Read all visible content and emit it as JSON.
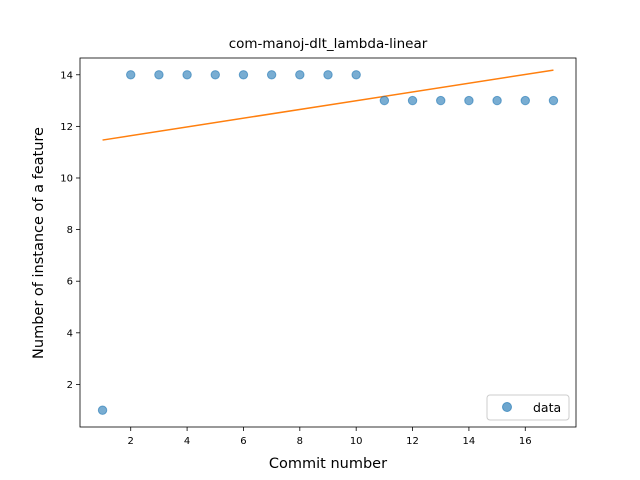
{
  "chart_data": {
    "type": "scatter",
    "title": "com-manoj-dlt_lambda-linear",
    "xlabel": "Commit number",
    "ylabel": "Number of instance of a feature",
    "xlim": [
      0.2,
      17.8
    ],
    "ylim": [
      0.35,
      14.65
    ],
    "xticks": [
      2,
      4,
      6,
      8,
      10,
      12,
      14,
      16
    ],
    "yticks": [
      2,
      4,
      6,
      8,
      10,
      12,
      14
    ],
    "legend_placement": "lower right",
    "grid": false,
    "series": [
      {
        "name": "data",
        "kind": "scatter",
        "color": "#1f77b4",
        "x": [
          1,
          2,
          3,
          4,
          5,
          6,
          7,
          8,
          9,
          10,
          11,
          12,
          13,
          14,
          15,
          16,
          17
        ],
        "y": [
          1,
          14,
          14,
          14,
          14,
          14,
          14,
          14,
          14,
          14,
          13,
          13,
          13,
          13,
          13,
          13,
          13
        ]
      },
      {
        "kind": "line",
        "color": "#ff7f0e",
        "x": [
          1,
          17
        ],
        "y": [
          11.47,
          14.18
        ]
      }
    ]
  }
}
